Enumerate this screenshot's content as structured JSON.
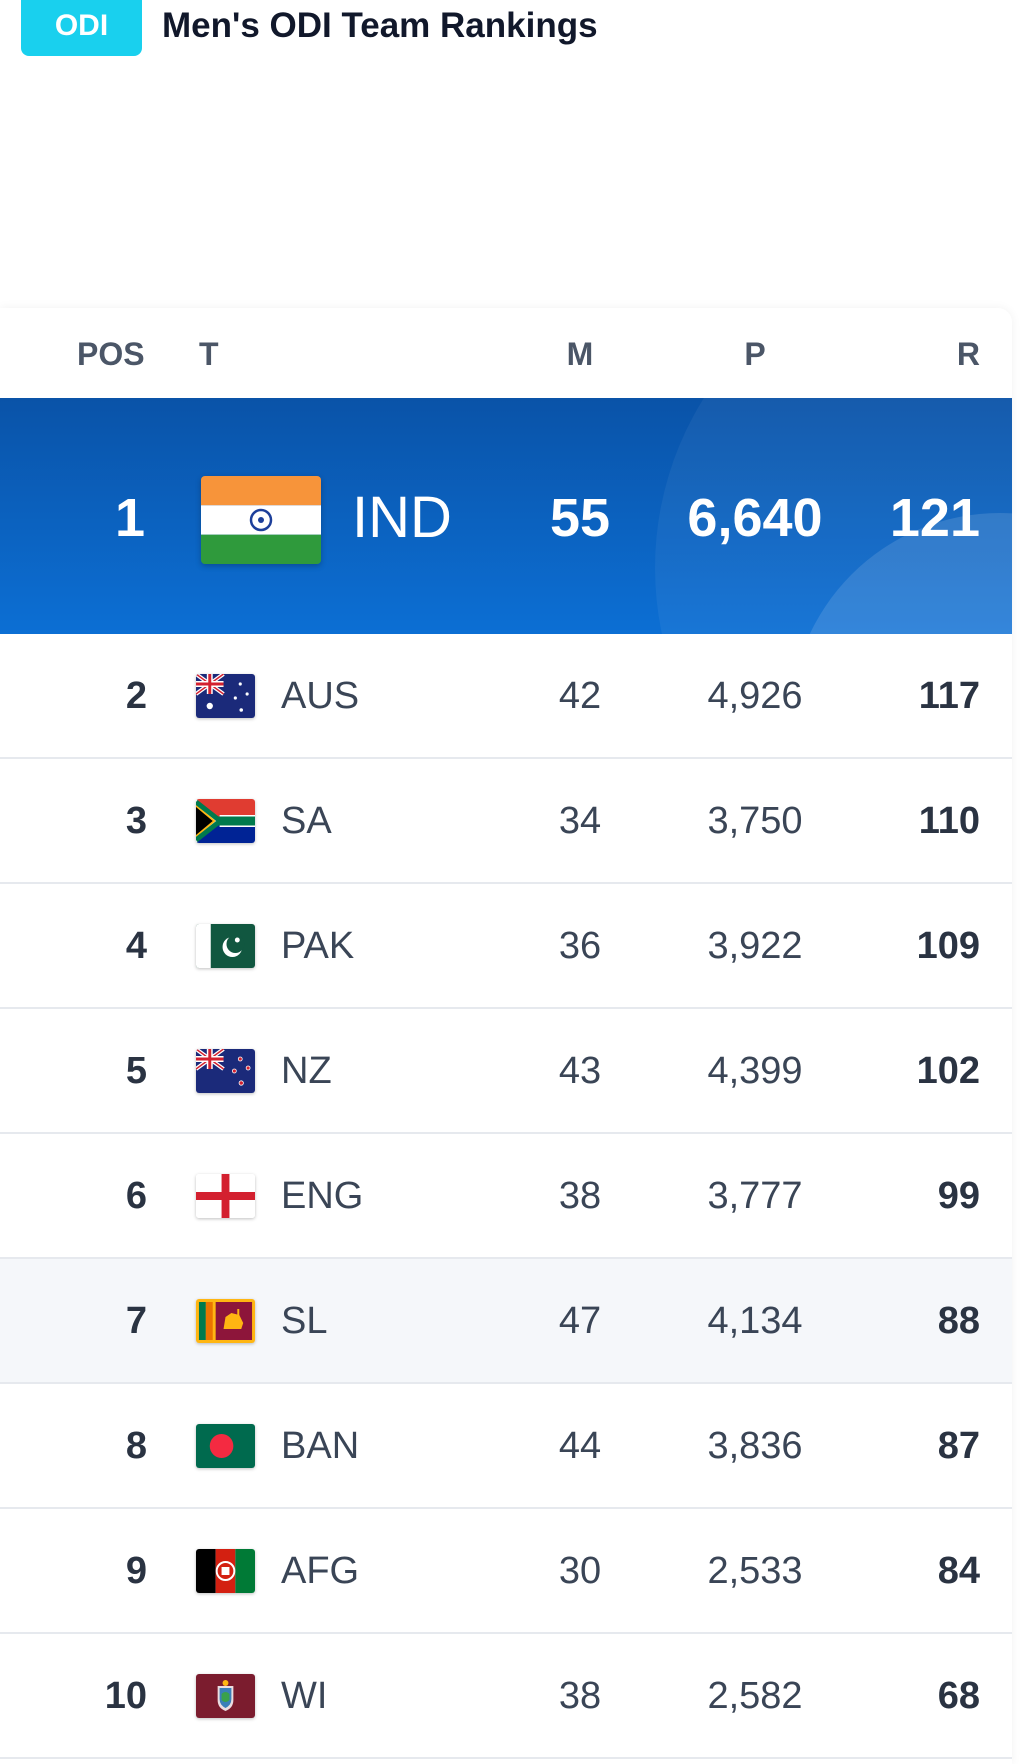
{
  "header": {
    "badge": "ODI",
    "title": "Men's ODI Team Rankings"
  },
  "table": {
    "columns": {
      "pos": "POS",
      "team": "T",
      "matches": "M",
      "points": "P",
      "rating": "R"
    },
    "top": {
      "pos": "1",
      "team": "IND",
      "matches": "55",
      "points": "6,640",
      "rating": "121",
      "flag": "india-flag-icon"
    },
    "rows": [
      {
        "pos": "2",
        "team": "AUS",
        "matches": "42",
        "points": "4,926",
        "rating": "117",
        "flag": "australia-flag-icon"
      },
      {
        "pos": "3",
        "team": "SA",
        "matches": "34",
        "points": "3,750",
        "rating": "110",
        "flag": "south-africa-flag-icon"
      },
      {
        "pos": "4",
        "team": "PAK",
        "matches": "36",
        "points": "3,922",
        "rating": "109",
        "flag": "pakistan-flag-icon"
      },
      {
        "pos": "5",
        "team": "NZ",
        "matches": "43",
        "points": "4,399",
        "rating": "102",
        "flag": "new-zealand-flag-icon"
      },
      {
        "pos": "6",
        "team": "ENG",
        "matches": "38",
        "points": "3,777",
        "rating": "99",
        "flag": "england-flag-icon"
      },
      {
        "pos": "7",
        "team": "SL",
        "matches": "47",
        "points": "4,134",
        "rating": "88",
        "flag": "sri-lanka-flag-icon"
      },
      {
        "pos": "8",
        "team": "BAN",
        "matches": "44",
        "points": "3,836",
        "rating": "87",
        "flag": "bangladesh-flag-icon"
      },
      {
        "pos": "9",
        "team": "AFG",
        "matches": "30",
        "points": "2,533",
        "rating": "84",
        "flag": "afghanistan-flag-icon"
      },
      {
        "pos": "10",
        "team": "WI",
        "matches": "38",
        "points": "2,582",
        "rating": "68",
        "flag": "west-indies-flag-icon"
      }
    ]
  },
  "colors": {
    "badge": "#19d0ee",
    "top_row_start": "#0a53a8",
    "top_row_end": "#0c6fd4",
    "row_divider": "#e6e9ee",
    "highlight_row": "#f5f7fa"
  }
}
